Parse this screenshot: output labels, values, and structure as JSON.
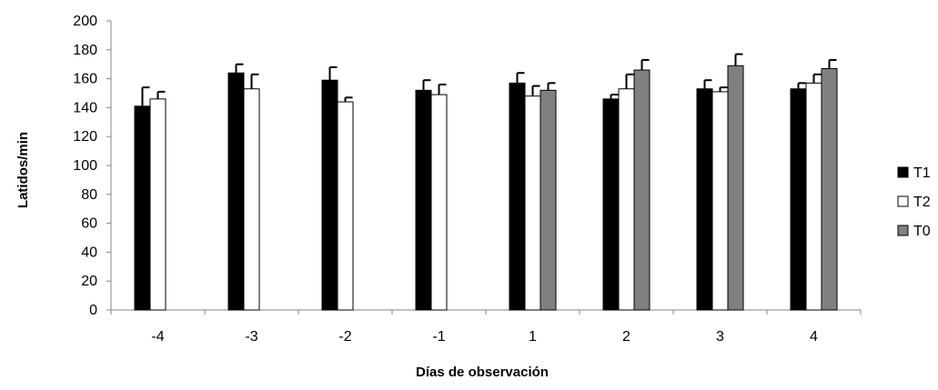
{
  "chart_data": {
    "type": "bar",
    "title": "",
    "xlabel": "Días de observación",
    "ylabel": "Latidos/min",
    "categories": [
      "-4",
      "-3",
      "-2",
      "-1",
      "1",
      "2",
      "3",
      "4"
    ],
    "ylim": [
      0,
      200
    ],
    "yticks": [
      0,
      20,
      40,
      60,
      80,
      100,
      120,
      140,
      160,
      180,
      200
    ],
    "grid": false,
    "legend_position": "right",
    "series": [
      {
        "name": "T1",
        "color": "#000000",
        "values": [
          141,
          164,
          159,
          152,
          157,
          146,
          153,
          153
        ],
        "errors": [
          13,
          6,
          9,
          7,
          7,
          3,
          6,
          4
        ]
      },
      {
        "name": "T2",
        "color": "#ffffff",
        "values": [
          146,
          153,
          144,
          149,
          148,
          153,
          151,
          157
        ],
        "errors": [
          5,
          10,
          3,
          7,
          7,
          10,
          3,
          6
        ]
      },
      {
        "name": "T0",
        "color": "#808080",
        "values": [
          null,
          null,
          null,
          null,
          152,
          166,
          169,
          167
        ],
        "errors": [
          null,
          null,
          null,
          null,
          5,
          7,
          8,
          6
        ]
      }
    ]
  }
}
